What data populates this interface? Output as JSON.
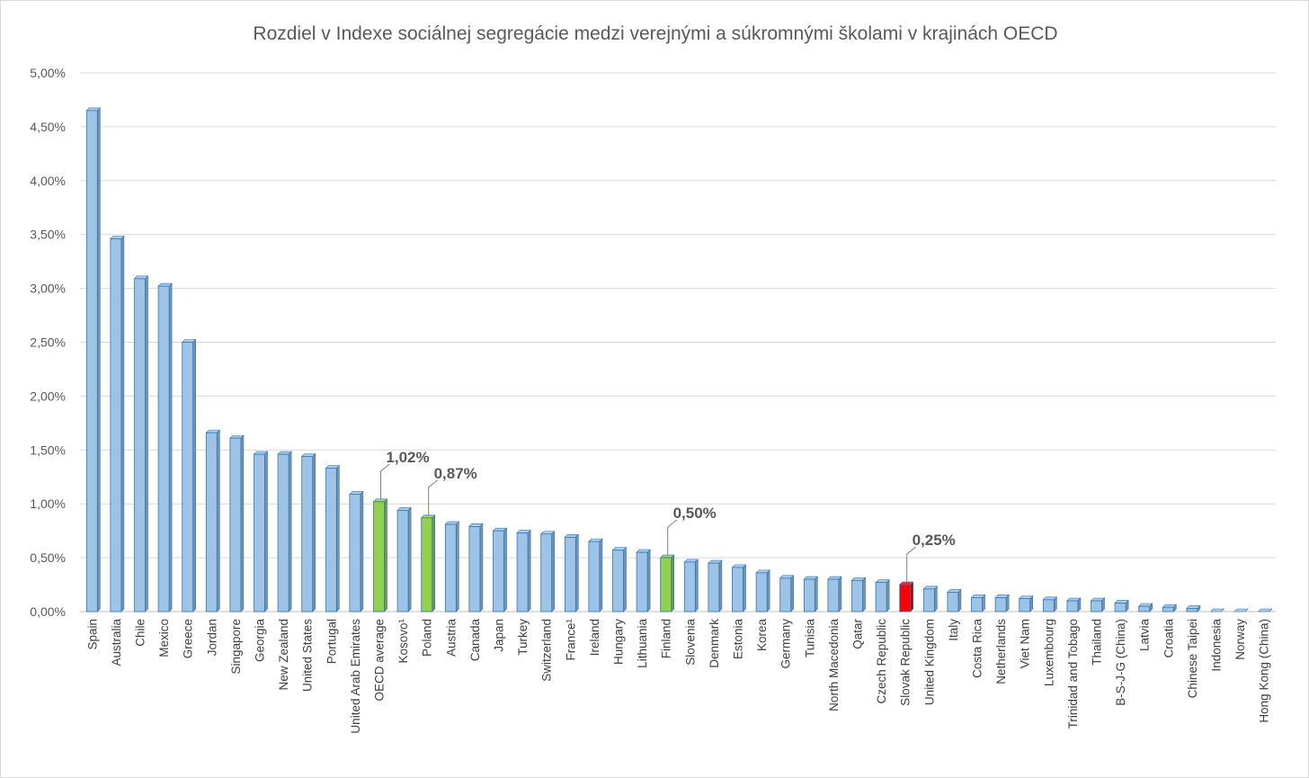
{
  "chart_data": {
    "type": "bar",
    "title": "Rozdiel  v Indexe  sociálnej  segregácie  medzi  verejnými  a súkromnými  školami  v krajinách  OECD",
    "xlabel": "",
    "ylabel": "",
    "ylim": [
      0,
      5.0
    ],
    "y_ticks": [
      "0,00%",
      "0,50%",
      "1,00%",
      "1,50%",
      "2,00%",
      "2,50%",
      "3,00%",
      "3,50%",
      "4,00%",
      "4,50%",
      "5,00%"
    ],
    "grid": true,
    "legend": "none",
    "colors": {
      "default": "#9dc3e6",
      "highlight_green": "#92d050",
      "highlight_red": "#ff0000",
      "bar_edge": "#2e75b6"
    },
    "categories": [
      "Spain",
      "Australia",
      "Chile",
      "Mexico",
      "Greece",
      "Jordan",
      "Singapore",
      "Georgia",
      "New Zealand",
      "United States",
      "Portugal",
      "United Arab Emirates",
      "OECD average",
      "Kosovo¹",
      "Poland",
      "Austria",
      "Canada",
      "Japan",
      "Turkey",
      "Switzerland",
      "France¹",
      "Ireland",
      "Hungary",
      "Lithuania",
      "Finland",
      "Slovenia",
      "Denmark",
      "Estonia",
      "Korea",
      "Germany",
      "Tunisia",
      "North Macedonia",
      "Qatar",
      "Czech Republic",
      "Slovak Republic",
      "United Kingdom",
      "Italy",
      "Costa Rica",
      "Netherlands",
      "Viet Nam",
      "Luxembourg",
      "Trinidad and Tobago",
      "Thailand",
      "B-S-J-G (China)",
      "Latvia",
      "Croatia",
      "Chinese Taipei",
      "Indonesia",
      "Norway",
      "Hong Kong (China)"
    ],
    "values": [
      4.65,
      3.46,
      3.09,
      3.02,
      2.5,
      1.66,
      1.61,
      1.46,
      1.46,
      1.44,
      1.33,
      1.09,
      1.02,
      0.94,
      0.87,
      0.81,
      0.79,
      0.75,
      0.73,
      0.72,
      0.69,
      0.65,
      0.57,
      0.55,
      0.5,
      0.46,
      0.45,
      0.41,
      0.36,
      0.31,
      0.3,
      0.3,
      0.29,
      0.27,
      0.25,
      0.21,
      0.18,
      0.13,
      0.13,
      0.12,
      0.11,
      0.1,
      0.1,
      0.08,
      0.05,
      0.04,
      0.03,
      0.0,
      0.0,
      0.0
    ],
    "bar_colors": [
      "default",
      "default",
      "default",
      "default",
      "default",
      "default",
      "default",
      "default",
      "default",
      "default",
      "default",
      "default",
      "highlight_green",
      "default",
      "highlight_green",
      "default",
      "default",
      "default",
      "default",
      "default",
      "default",
      "default",
      "default",
      "default",
      "highlight_green",
      "default",
      "default",
      "default",
      "default",
      "default",
      "default",
      "default",
      "default",
      "default",
      "highlight_red",
      "default",
      "default",
      "default",
      "default",
      "default",
      "default",
      "default",
      "default",
      "default",
      "default",
      "default",
      "default",
      "default",
      "default",
      "default"
    ],
    "data_labels": [
      {
        "category": "OECD average",
        "text": "1,02%"
      },
      {
        "category": "Poland",
        "text": "0,87%"
      },
      {
        "category": "Finland",
        "text": "0,50%"
      },
      {
        "category": "Slovak Republic",
        "text": "0,25%"
      }
    ]
  }
}
